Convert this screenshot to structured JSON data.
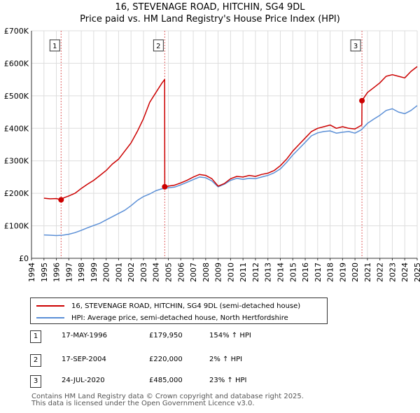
{
  "title": {
    "line1": "16, STEVENAGE ROAD, HITCHIN, SG4 9DL",
    "line2": "Price paid vs. HM Land Registry's House Price Index (HPI)"
  },
  "chart_data": {
    "type": "line",
    "title": "16, STEVENAGE ROAD, HITCHIN, SG4 9DL - Price paid vs. HM Land Registry's House Price Index (HPI)",
    "xlabel": "",
    "ylabel": "",
    "xlim": [
      1994,
      2025
    ],
    "ylim": [
      0,
      700000
    ],
    "grid": true,
    "y_ticks": [
      {
        "value": 0,
        "label": "£0"
      },
      {
        "value": 100000,
        "label": "£100K"
      },
      {
        "value": 200000,
        "label": "£200K"
      },
      {
        "value": 300000,
        "label": "£300K"
      },
      {
        "value": 400000,
        "label": "£400K"
      },
      {
        "value": 500000,
        "label": "£500K"
      },
      {
        "value": 600000,
        "label": "£600K"
      },
      {
        "value": 700000,
        "label": "£700K"
      }
    ],
    "x_ticks": [
      "1994",
      "1995",
      "1996",
      "1997",
      "1998",
      "1999",
      "2000",
      "2001",
      "2002",
      "2003",
      "2004",
      "2005",
      "2006",
      "2007",
      "2008",
      "2009",
      "2010",
      "2011",
      "2012",
      "2013",
      "2014",
      "2015",
      "2016",
      "2017",
      "2018",
      "2019",
      "2020",
      "2021",
      "2022",
      "2023",
      "2024",
      "2025"
    ],
    "series": [
      {
        "name": "16, STEVENAGE ROAD, HITCHIN, SG4 9DL (semi-detached house)",
        "color": "#cc0000",
        "x": [
          1995.0,
          1995.5,
          1996.0,
          1996.38,
          1996.6,
          1997.0,
          1997.5,
          1998.0,
          1998.5,
          1999.0,
          1999.5,
          2000.0,
          2000.5,
          2001.0,
          2001.5,
          2002.0,
          2002.5,
          2003.0,
          2003.5,
          2004.0,
          2004.5,
          2004.7,
          2004.71,
          2005.0,
          2005.5,
          2006.0,
          2006.5,
          2007.0,
          2007.5,
          2008.0,
          2008.5,
          2009.0,
          2009.5,
          2010.0,
          2010.5,
          2011.0,
          2011.5,
          2012.0,
          2012.5,
          2013.0,
          2013.5,
          2014.0,
          2014.5,
          2015.0,
          2015.5,
          2016.0,
          2016.5,
          2017.0,
          2017.5,
          2018.0,
          2018.5,
          2019.0,
          2019.5,
          2020.0,
          2020.55,
          2020.56,
          2021.0,
          2021.5,
          2022.0,
          2022.5,
          2023.0,
          2023.5,
          2024.0,
          2024.5,
          2025.0
        ],
        "y": [
          185000,
          183000,
          184000,
          179950,
          186000,
          192000,
          200000,
          215000,
          228000,
          240000,
          255000,
          270000,
          290000,
          305000,
          330000,
          355000,
          390000,
          430000,
          480000,
          510000,
          540000,
          550000,
          220000,
          222000,
          225000,
          232000,
          240000,
          250000,
          258000,
          255000,
          245000,
          222000,
          230000,
          245000,
          252000,
          250000,
          255000,
          252000,
          258000,
          262000,
          270000,
          285000,
          305000,
          330000,
          350000,
          370000,
          390000,
          400000,
          405000,
          410000,
          400000,
          405000,
          400000,
          398000,
          410000,
          485000,
          510000,
          525000,
          540000,
          560000,
          565000,
          560000,
          555000,
          575000,
          590000
        ]
      },
      {
        "name": "HPI: Average price, semi-detached house, North Hertfordshire",
        "color": "#5b8fd6",
        "x": [
          1995.0,
          1995.5,
          1996.0,
          1996.5,
          1997.0,
          1997.5,
          1998.0,
          1998.5,
          1999.0,
          1999.5,
          2000.0,
          2000.5,
          2001.0,
          2001.5,
          2002.0,
          2002.5,
          2003.0,
          2003.5,
          2004.0,
          2004.5,
          2005.0,
          2005.5,
          2006.0,
          2006.5,
          2007.0,
          2007.5,
          2008.0,
          2008.5,
          2009.0,
          2009.5,
          2010.0,
          2010.5,
          2011.0,
          2011.5,
          2012.0,
          2012.5,
          2013.0,
          2013.5,
          2014.0,
          2014.5,
          2015.0,
          2015.5,
          2016.0,
          2016.5,
          2017.0,
          2017.5,
          2018.0,
          2018.5,
          2019.0,
          2019.5,
          2020.0,
          2020.5,
          2021.0,
          2021.5,
          2022.0,
          2022.5,
          2023.0,
          2023.5,
          2024.0,
          2024.5,
          2025.0
        ],
        "y": [
          72000,
          71000,
          70000,
          71000,
          74000,
          79000,
          86000,
          94000,
          101000,
          108000,
          118000,
          128000,
          138000,
          148000,
          162000,
          178000,
          190000,
          198000,
          208000,
          214000,
          217000,
          219000,
          226000,
          234000,
          242000,
          250000,
          248000,
          238000,
          220000,
          228000,
          240000,
          246000,
          243000,
          246000,
          245000,
          250000,
          255000,
          263000,
          275000,
          295000,
          318000,
          337000,
          357000,
          377000,
          386000,
          390000,
          392000,
          385000,
          388000,
          390000,
          385000,
          395000,
          415000,
          428000,
          440000,
          455000,
          460000,
          450000,
          445000,
          455000,
          470000
        ]
      }
    ],
    "sale_markers": [
      {
        "label": "1",
        "x": 1996.38,
        "y": 179950
      },
      {
        "label": "2",
        "x": 2004.71,
        "y": 220000
      },
      {
        "label": "3",
        "x": 2020.56,
        "y": 485000
      }
    ]
  },
  "legend": {
    "items": [
      {
        "label": "16, STEVENAGE ROAD, HITCHIN, SG4 9DL (semi-detached house)",
        "color": "#cc0000"
      },
      {
        "label": "HPI: Average price, semi-detached house, North Hertfordshire",
        "color": "#5b8fd6"
      }
    ]
  },
  "sales": [
    {
      "num": "1",
      "date": "17-MAY-1996",
      "price": "£179,950",
      "hpi": "154% ↑ HPI"
    },
    {
      "num": "2",
      "date": "17-SEP-2004",
      "price": "£220,000",
      "hpi": "2% ↑ HPI"
    },
    {
      "num": "3",
      "date": "24-JUL-2020",
      "price": "£485,000",
      "hpi": "23% ↑ HPI"
    }
  ],
  "footer": {
    "line1": "Contains HM Land Registry data © Crown copyright and database right 2025.",
    "line2": "This data is licensed under the Open Government Licence v3.0."
  }
}
